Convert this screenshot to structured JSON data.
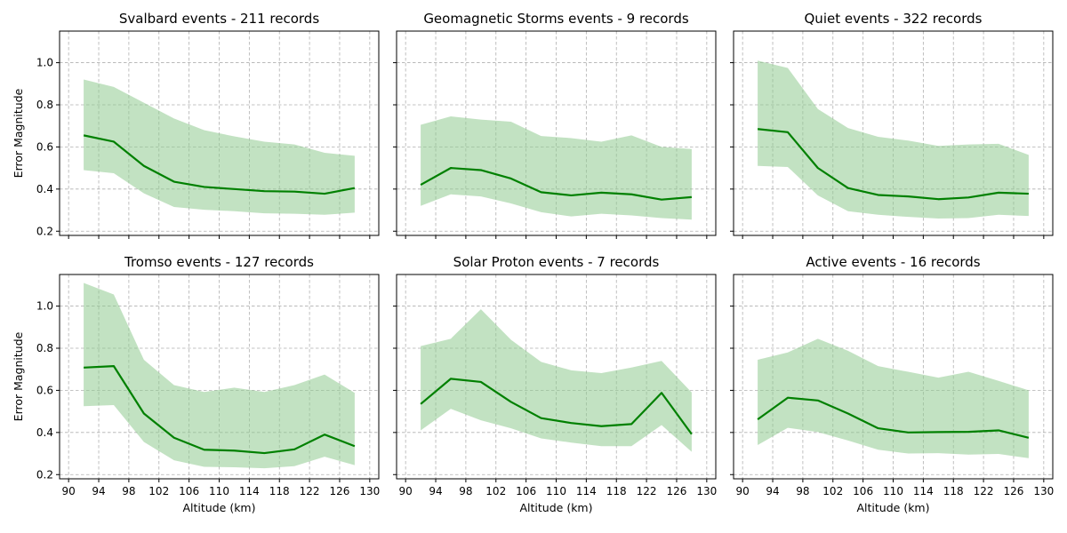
{
  "colors": {
    "line": "#008000",
    "band": "#8fcb8f"
  },
  "chart_data": [
    {
      "type": "line",
      "title": "Svalbard events - 211 records",
      "xlabel": "",
      "ylabel": "Error Magnitude",
      "x": [
        92,
        96,
        100,
        104,
        108,
        112,
        116,
        120,
        124,
        128
      ],
      "series": [
        {
          "values": [
            0.655,
            0.625,
            0.51,
            0.435,
            0.41,
            0.4,
            0.39,
            0.388,
            0.378,
            0.405
          ],
          "upper": [
            0.92,
            0.885,
            0.81,
            0.735,
            0.68,
            0.65,
            0.625,
            0.612,
            0.572,
            0.558
          ],
          "lower": [
            0.49,
            0.475,
            0.38,
            0.315,
            0.302,
            0.295,
            0.285,
            0.283,
            0.278,
            0.288
          ]
        }
      ]
    },
    {
      "type": "line",
      "title": "Geomagnetic Storms events - 9 records",
      "xlabel": "",
      "ylabel": "",
      "x": [
        92,
        96,
        100,
        104,
        108,
        112,
        116,
        120,
        124,
        128
      ],
      "series": [
        {
          "values": [
            0.42,
            0.5,
            0.49,
            0.45,
            0.385,
            0.37,
            0.383,
            0.375,
            0.35,
            0.362
          ],
          "upper": [
            0.705,
            0.745,
            0.73,
            0.72,
            0.652,
            0.642,
            0.625,
            0.655,
            0.6,
            0.59
          ],
          "lower": [
            0.32,
            0.375,
            0.365,
            0.332,
            0.29,
            0.27,
            0.283,
            0.275,
            0.262,
            0.255
          ]
        }
      ]
    },
    {
      "type": "line",
      "title": "Quiet events - 322 records",
      "xlabel": "",
      "ylabel": "",
      "x": [
        92,
        96,
        100,
        104,
        108,
        112,
        116,
        120,
        124,
        128
      ],
      "series": [
        {
          "values": [
            0.685,
            0.67,
            0.5,
            0.405,
            0.372,
            0.365,
            0.352,
            0.36,
            0.383,
            0.378
          ],
          "upper": [
            1.01,
            0.975,
            0.78,
            0.69,
            0.648,
            0.63,
            0.605,
            0.612,
            0.615,
            0.562
          ],
          "lower": [
            0.51,
            0.505,
            0.37,
            0.295,
            0.278,
            0.268,
            0.26,
            0.262,
            0.278,
            0.272
          ]
        }
      ]
    },
    {
      "type": "line",
      "title": "Tromso events - 127 records",
      "xlabel": "Altitude (km)",
      "ylabel": "Error Magnitude",
      "x": [
        92,
        96,
        100,
        104,
        108,
        112,
        116,
        120,
        124,
        128
      ],
      "series": [
        {
          "values": [
            0.708,
            0.715,
            0.49,
            0.375,
            0.318,
            0.314,
            0.302,
            0.32,
            0.39,
            0.335
          ],
          "upper": [
            1.11,
            1.055,
            0.745,
            0.625,
            0.592,
            0.613,
            0.592,
            0.625,
            0.675,
            0.588
          ],
          "lower": [
            0.525,
            0.53,
            0.355,
            0.268,
            0.237,
            0.235,
            0.23,
            0.24,
            0.285,
            0.245
          ]
        }
      ]
    },
    {
      "type": "line",
      "title": "Solar Proton events - 7 records",
      "xlabel": "Altitude (km)",
      "ylabel": "",
      "x": [
        92,
        96,
        100,
        104,
        108,
        112,
        116,
        120,
        124,
        128
      ],
      "series": [
        {
          "values": [
            0.535,
            0.655,
            0.64,
            0.545,
            0.468,
            0.445,
            0.43,
            0.44,
            0.588,
            0.392
          ],
          "upper": [
            0.81,
            0.845,
            0.985,
            0.84,
            0.735,
            0.695,
            0.682,
            0.708,
            0.74,
            0.59
          ],
          "lower": [
            0.41,
            0.512,
            0.458,
            0.42,
            0.372,
            0.352,
            0.335,
            0.335,
            0.435,
            0.308
          ]
        }
      ]
    },
    {
      "type": "line",
      "title": "Active events - 16 records",
      "xlabel": "Altitude (km)",
      "ylabel": "",
      "x": [
        92,
        96,
        100,
        104,
        108,
        112,
        116,
        120,
        124,
        128
      ],
      "series": [
        {
          "values": [
            0.462,
            0.565,
            0.552,
            0.49,
            0.42,
            0.4,
            0.402,
            0.403,
            0.41,
            0.375
          ],
          "upper": [
            0.745,
            0.78,
            0.845,
            0.788,
            0.715,
            0.688,
            0.66,
            0.688,
            0.645,
            0.6
          ],
          "lower": [
            0.34,
            0.422,
            0.402,
            0.362,
            0.318,
            0.3,
            0.302,
            0.295,
            0.298,
            0.278
          ]
        }
      ]
    }
  ],
  "axes": {
    "xlim": [
      88.8,
      131.2
    ],
    "ylim": [
      0.18,
      1.15
    ],
    "xticks": [
      90,
      94,
      98,
      102,
      106,
      110,
      114,
      118,
      122,
      126,
      130
    ],
    "yticks": [
      0.2,
      0.4,
      0.6,
      0.8,
      1.0
    ],
    "grid": true
  }
}
